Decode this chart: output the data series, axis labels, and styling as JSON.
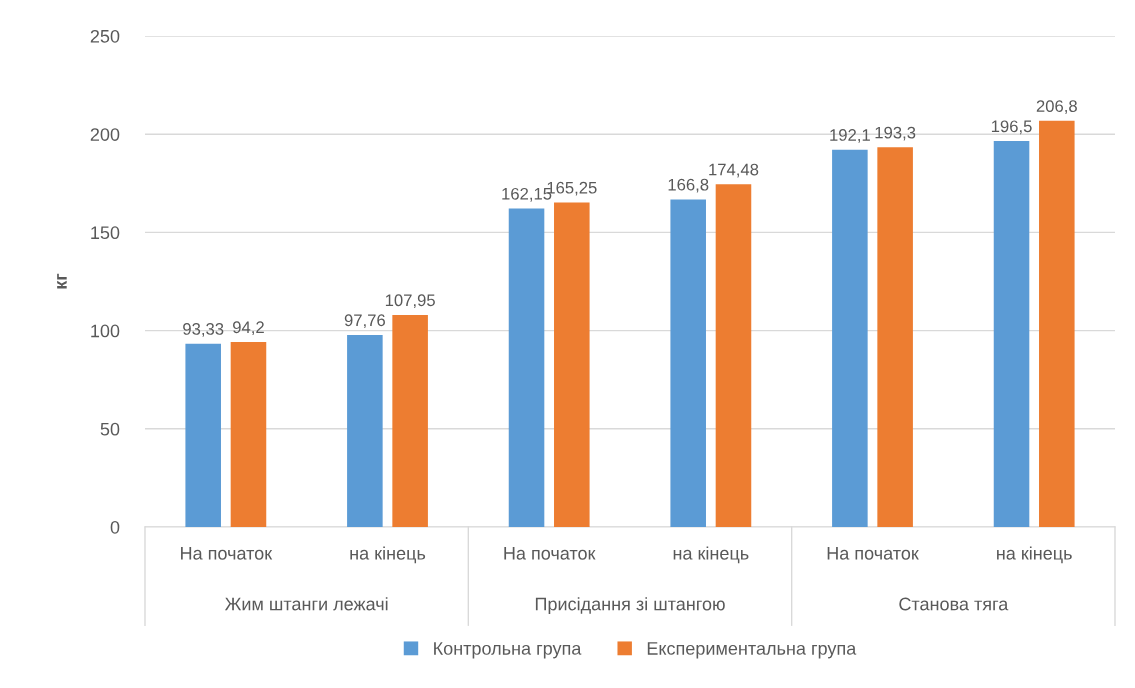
{
  "chart_data": {
    "type": "bar",
    "ylabel": "кг",
    "categories": [
      "На початок",
      "на кінець",
      "На початок",
      "на кінець",
      "На початок",
      "на кінець"
    ],
    "annotations": [
      "Жим штанги лежачі",
      "Присідання зі штангою",
      "Станова тяга"
    ],
    "series": [
      {
        "name": "Контрольна група",
        "color": "#5b9bd5",
        "values": [
          93.33,
          97.76,
          162.15,
          166.8,
          192.1,
          196.5
        ],
        "value_labels": [
          "93,33",
          "97,76",
          "162,15",
          "166,8",
          "192,1",
          "196,5"
        ]
      },
      {
        "name": "Експериментальна група",
        "color": "#ed7d31",
        "values": [
          94.2,
          107.95,
          165.25,
          174.48,
          193.3,
          206.8
        ],
        "value_labels": [
          "94,2",
          "107,95",
          "165,25",
          "174,48",
          "193,3",
          "206,8"
        ]
      }
    ],
    "ylim": [
      0,
      250
    ],
    "yticks": [
      0,
      50,
      100,
      150,
      200,
      250
    ],
    "grid": "y",
    "legend": "bottom"
  }
}
